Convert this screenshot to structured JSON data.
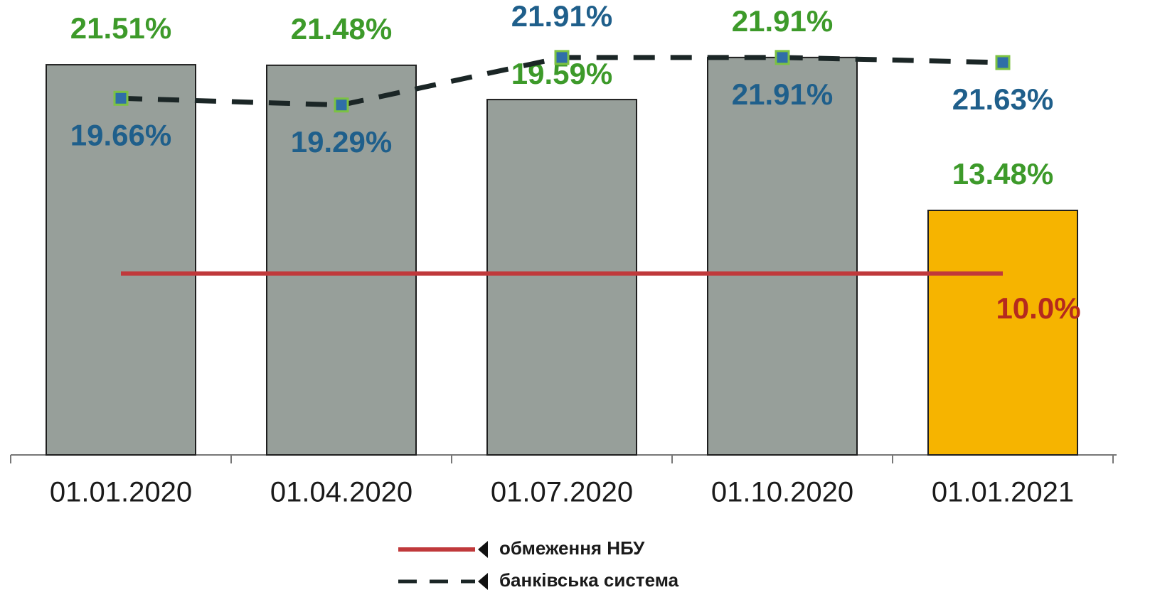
{
  "chart_data": {
    "type": "bar",
    "categories": [
      "01.01.2020",
      "01.04.2020",
      "01.07.2020",
      "01.10.2020",
      "01.01.2021"
    ],
    "ylim": [
      0,
      25
    ],
    "series": [
      {
        "type": "bar",
        "colors": [
          "#979f9a",
          "#979f9a",
          "#979f9a",
          "#979f9a",
          "#f6b400"
        ],
        "label_color": "#3d9a2a",
        "values": [
          21.51,
          21.48,
          19.59,
          21.91,
          13.48
        ],
        "value_labels": [
          "21.51%",
          "21.48%",
          "19.59%",
          "21.91%",
          "13.48%"
        ]
      },
      {
        "type": "line",
        "name": "обмеження НБУ",
        "color": "#c0393b",
        "label_color": "#b52a1e",
        "values": [
          10.0,
          10.0,
          10.0,
          10.0,
          10.0
        ],
        "value_labels": [
          null,
          null,
          null,
          null,
          "10.0%"
        ]
      },
      {
        "type": "line",
        "name": "банківська система",
        "color": "#1b2626",
        "dashed": true,
        "marker_color": "#2f6ea8",
        "marker_edge": "#7cc243",
        "label_color": "#1f5f8b",
        "values": [
          19.66,
          19.29,
          21.91,
          21.91,
          21.63
        ],
        "value_labels": [
          "19.66%",
          "19.29%",
          "21.91%",
          "21.91%",
          "21.63%"
        ]
      }
    ]
  }
}
